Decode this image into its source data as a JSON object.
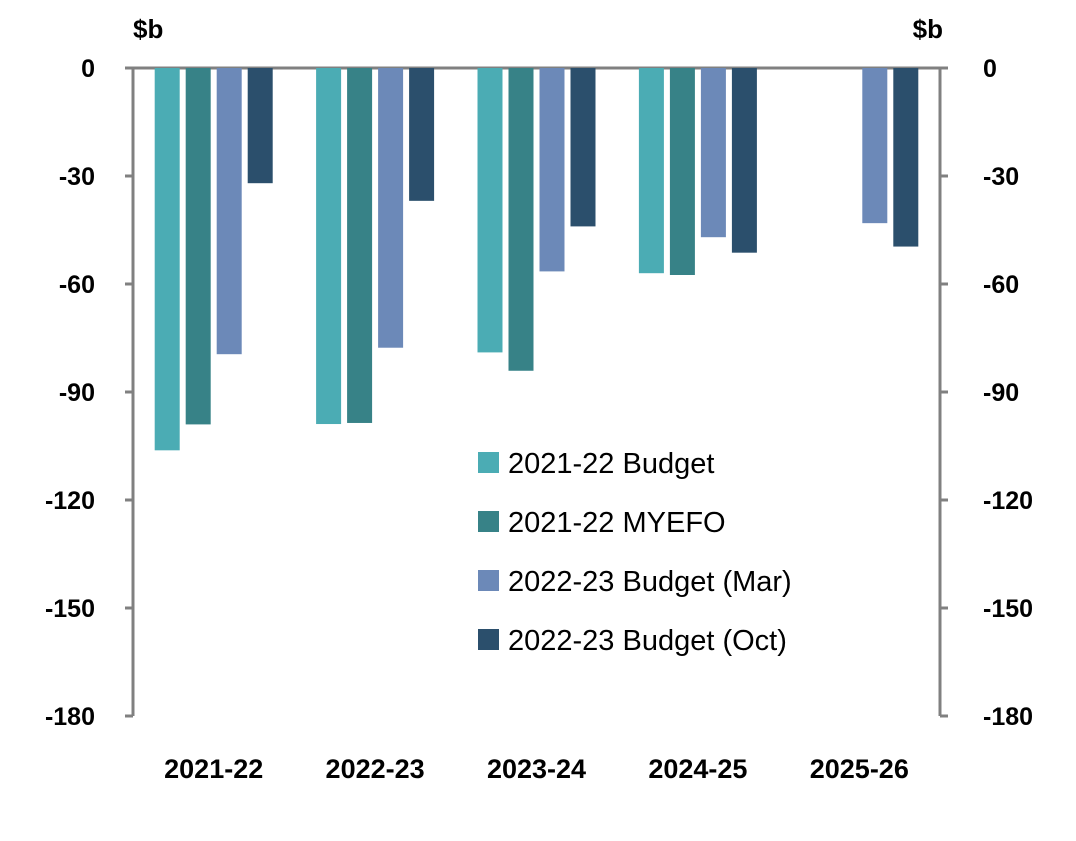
{
  "chart_data": {
    "type": "bar",
    "left_axis_unit": "$b",
    "right_axis_unit": "$b",
    "categories": [
      "2021-22",
      "2022-23",
      "2023-24",
      "2024-25",
      "2025-26"
    ],
    "series": [
      {
        "name": "2021-22 Budget",
        "color": "#4bacb4",
        "values": [
          -106.2,
          -98.9,
          -79.0,
          -57.0,
          null
        ]
      },
      {
        "name": "2021-22 MYEFO",
        "color": "#378287",
        "values": [
          -99.0,
          -98.6,
          -84.1,
          -57.5,
          null
        ]
      },
      {
        "name": "2022-23 Budget (Mar)",
        "color": "#6c89b8",
        "values": [
          -79.5,
          -77.7,
          -56.5,
          -47.0,
          -43.1
        ]
      },
      {
        "name": "2022-23 Budget (Oct)",
        "color": "#2b4f6c",
        "values": [
          -32.0,
          -36.9,
          -44.0,
          -51.3,
          -49.6
        ]
      }
    ],
    "ylim": [
      -180,
      0
    ],
    "yticks": [
      "0",
      "-30",
      "-60",
      "-90",
      "-120",
      "-150",
      "-180"
    ],
    "ytick_values": [
      0,
      -30,
      -60,
      -90,
      -120,
      -150,
      -180
    ],
    "axis_color": "#808080",
    "legend_position": "center-right",
    "grid": false
  }
}
